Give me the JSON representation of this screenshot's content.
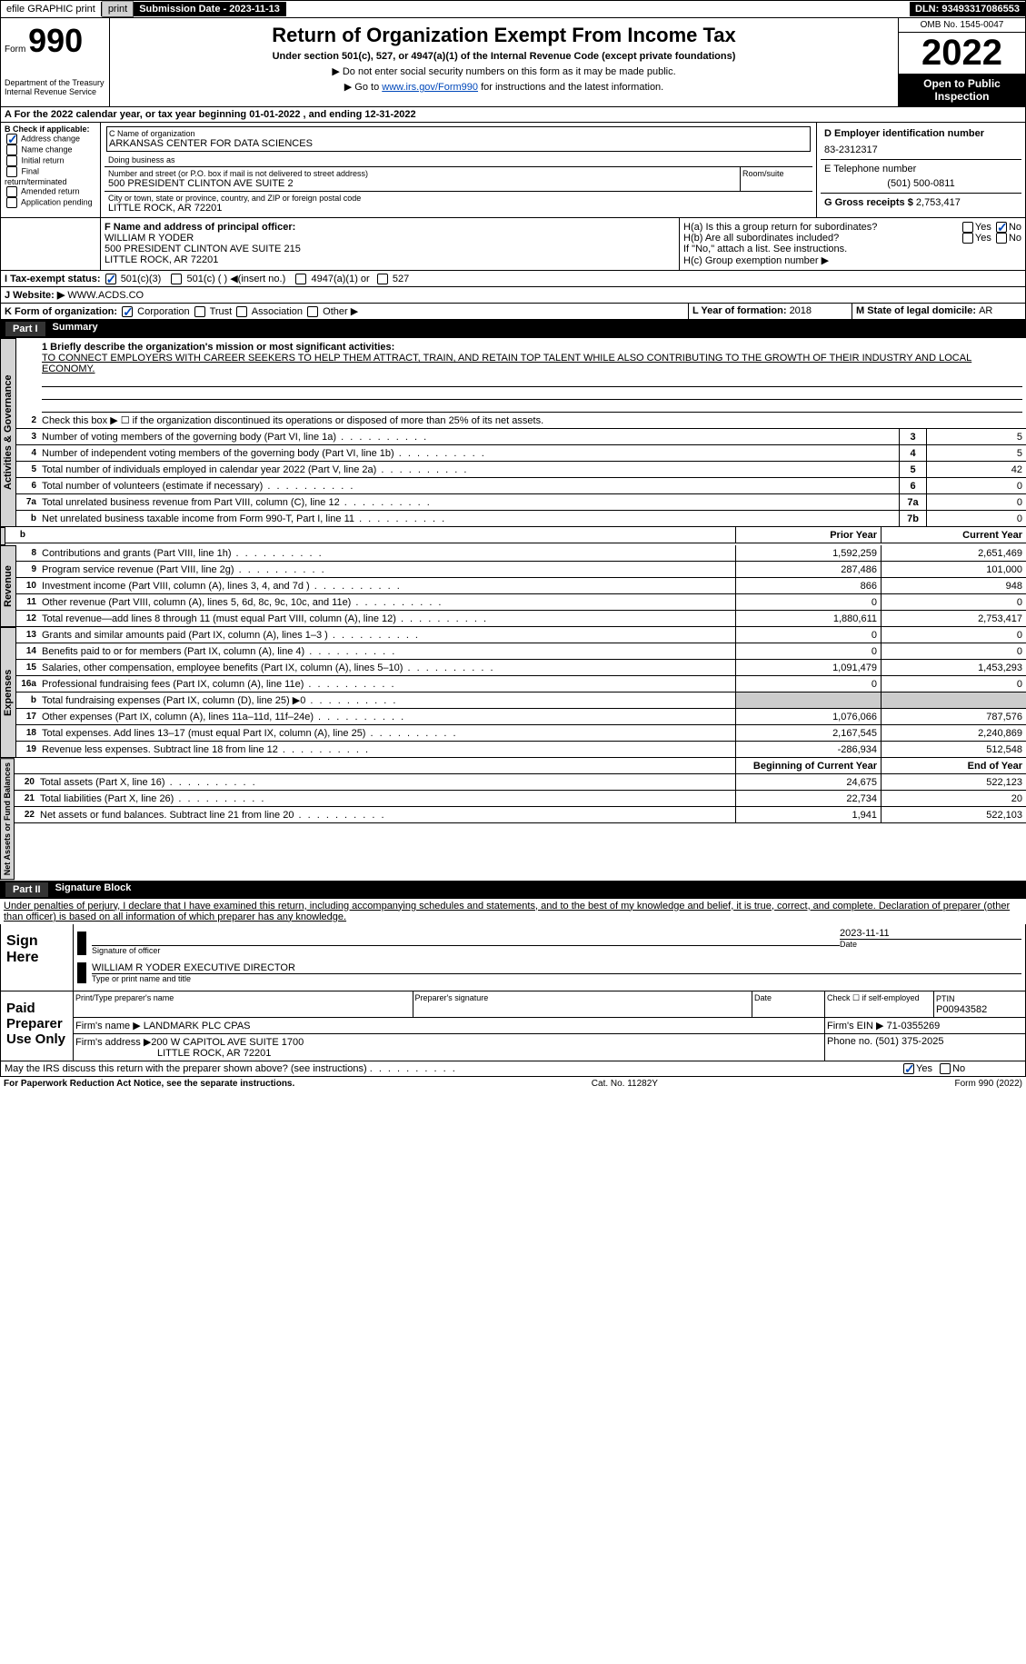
{
  "topbar": {
    "efile": "efile GRAPHIC print",
    "submission_label": "Submission Date - ",
    "submission_date": "2023-11-13",
    "dln_label": "DLN: ",
    "dln": "93493317086553"
  },
  "header": {
    "form_label": "Form",
    "form_num": "990",
    "dept": "Department of the Treasury\nInternal Revenue Service",
    "title": "Return of Organization Exempt From Income Tax",
    "subtitle": "Under section 501(c), 527, or 4947(a)(1) of the Internal Revenue Code (except private foundations)",
    "note1": "▶ Do not enter social security numbers on this form as it may be made public.",
    "note2_pre": "▶ Go to ",
    "note2_link": "www.irs.gov/Form990",
    "note2_post": " for instructions and the latest information.",
    "omb": "OMB No. 1545-0047",
    "year": "2022",
    "inspection": "Open to Public Inspection"
  },
  "period": {
    "line": "A For the 2022 calendar year, or tax year beginning ",
    "begin": "01-01-2022",
    "mid": " , and ending ",
    "end": "12-31-2022"
  },
  "blockB": {
    "label": "B Check if applicable:",
    "items": [
      "Address change",
      "Name change",
      "Initial return",
      "Final return/terminated",
      "Amended return",
      "Application pending"
    ],
    "checked": [
      true,
      false,
      false,
      false,
      false,
      false
    ]
  },
  "blockC": {
    "name_label": "C Name of organization",
    "name": "ARKANSAS CENTER FOR DATA SCIENCES",
    "dba_label": "Doing business as",
    "addr_label": "Number and street (or P.O. box if mail is not delivered to street address)",
    "room_label": "Room/suite",
    "addr": "500 PRESIDENT CLINTON AVE SUITE 2",
    "city_label": "City or town, state or province, country, and ZIP or foreign postal code",
    "city": "LITTLE ROCK, AR  72201"
  },
  "blockD": {
    "label": "D Employer identification number",
    "val": "83-2312317"
  },
  "blockE": {
    "label": "E Telephone number",
    "val": "(501) 500-0811"
  },
  "blockG": {
    "label": "G Gross receipts $ ",
    "val": "2,753,417"
  },
  "blockF": {
    "label": "F Name and address of principal officer:",
    "name": "WILLIAM R YODER",
    "addr": "500 PRESIDENT CLINTON AVE SUITE 215",
    "city": "LITTLE ROCK, AR  72201"
  },
  "blockH": {
    "a_label": "H(a) Is this a group return for subordinates?",
    "b_label": "H(b) Are all subordinates included?",
    "note": "If \"No,\" attach a list. See instructions.",
    "c_label": "H(c) Group exemption number ▶",
    "yes": "Yes",
    "no": "No"
  },
  "blockI": {
    "label": "I   Tax-exempt status:",
    "opts": [
      "501(c)(3)",
      "501(c) (  ) ◀(insert no.)",
      "4947(a)(1) or",
      "527"
    ]
  },
  "blockJ": {
    "label": "J   Website: ▶",
    "val": "WWW.ACDS.CO"
  },
  "blockK": {
    "label": "K Form of organization:",
    "opts": [
      "Corporation",
      "Trust",
      "Association",
      "Other ▶"
    ]
  },
  "blockL": {
    "label": "L Year of formation: ",
    "val": "2018"
  },
  "blockM": {
    "label": "M State of legal domicile: ",
    "val": "AR"
  },
  "part1": {
    "header": "Part I",
    "title": "Summary",
    "l1_label": "1  Briefly describe the organization's mission or most significant activities:",
    "l1_val": "TO CONNECT EMPLOYERS WITH CAREER SEEKERS TO HELP THEM ATTRACT, TRAIN, AND RETAIN TOP TALENT WHILE ALSO CONTRIBUTING TO THE GROWTH OF THEIR INDUSTRY AND LOCAL ECONOMY.",
    "l2": "Check this box ▶ ☐ if the organization discontinued its operations or disposed of more than 25% of its net assets.",
    "lines_gov": [
      {
        "n": "3",
        "t": "Number of voting members of the governing body (Part VI, line 1a)",
        "b": "3",
        "v": "5"
      },
      {
        "n": "4",
        "t": "Number of independent voting members of the governing body (Part VI, line 1b)",
        "b": "4",
        "v": "5"
      },
      {
        "n": "5",
        "t": "Total number of individuals employed in calendar year 2022 (Part V, line 2a)",
        "b": "5",
        "v": "42"
      },
      {
        "n": "6",
        "t": "Total number of volunteers (estimate if necessary)",
        "b": "6",
        "v": "0"
      },
      {
        "n": "7a",
        "t": "Total unrelated business revenue from Part VIII, column (C), line 12",
        "b": "7a",
        "v": "0"
      },
      {
        "n": "b",
        "t": "Net unrelated business taxable income from Form 990-T, Part I, line 11",
        "b": "7b",
        "v": "0"
      }
    ],
    "col_prior": "Prior Year",
    "col_current": "Current Year",
    "lines_rev": [
      {
        "n": "8",
        "t": "Contributions and grants (Part VIII, line 1h)",
        "p": "1,592,259",
        "c": "2,651,469"
      },
      {
        "n": "9",
        "t": "Program service revenue (Part VIII, line 2g)",
        "p": "287,486",
        "c": "101,000"
      },
      {
        "n": "10",
        "t": "Investment income (Part VIII, column (A), lines 3, 4, and 7d )",
        "p": "866",
        "c": "948"
      },
      {
        "n": "11",
        "t": "Other revenue (Part VIII, column (A), lines 5, 6d, 8c, 9c, 10c, and 11e)",
        "p": "0",
        "c": "0"
      },
      {
        "n": "12",
        "t": "Total revenue—add lines 8 through 11 (must equal Part VIII, column (A), line 12)",
        "p": "1,880,611",
        "c": "2,753,417"
      }
    ],
    "lines_exp": [
      {
        "n": "13",
        "t": "Grants and similar amounts paid (Part IX, column (A), lines 1–3 )",
        "p": "0",
        "c": "0"
      },
      {
        "n": "14",
        "t": "Benefits paid to or for members (Part IX, column (A), line 4)",
        "p": "0",
        "c": "0"
      },
      {
        "n": "15",
        "t": "Salaries, other compensation, employee benefits (Part IX, column (A), lines 5–10)",
        "p": "1,091,479",
        "c": "1,453,293"
      },
      {
        "n": "16a",
        "t": "Professional fundraising fees (Part IX, column (A), line 11e)",
        "p": "0",
        "c": "0"
      },
      {
        "n": "b",
        "t": "Total fundraising expenses (Part IX, column (D), line 25) ▶0",
        "p": "",
        "c": "",
        "shade": true
      },
      {
        "n": "17",
        "t": "Other expenses (Part IX, column (A), lines 11a–11d, 11f–24e)",
        "p": "1,076,066",
        "c": "787,576"
      },
      {
        "n": "18",
        "t": "Total expenses. Add lines 13–17 (must equal Part IX, column (A), line 25)",
        "p": "2,167,545",
        "c": "2,240,869"
      },
      {
        "n": "19",
        "t": "Revenue less expenses. Subtract line 18 from line 12",
        "p": "-286,934",
        "c": "512,548"
      }
    ],
    "col_begin": "Beginning of Current Year",
    "col_end": "End of Year",
    "lines_net": [
      {
        "n": "20",
        "t": "Total assets (Part X, line 16)",
        "p": "24,675",
        "c": "522,123"
      },
      {
        "n": "21",
        "t": "Total liabilities (Part X, line 26)",
        "p": "22,734",
        "c": "20"
      },
      {
        "n": "22",
        "t": "Net assets or fund balances. Subtract line 21 from line 20",
        "p": "1,941",
        "c": "522,103"
      }
    ],
    "side_gov": "Activities & Governance",
    "side_rev": "Revenue",
    "side_exp": "Expenses",
    "side_net": "Net Assets or Fund Balances"
  },
  "part2": {
    "header": "Part II",
    "title": "Signature Block",
    "decl": "Under penalties of perjury, I declare that I have examined this return, including accompanying schedules and statements, and to the best of my knowledge and belief, it is true, correct, and complete. Declaration of preparer (other than officer) is based on all information of which preparer has any knowledge.",
    "sign_here": "Sign Here",
    "sig_officer": "Signature of officer",
    "sig_date": "Date",
    "sig_date_val": "2023-11-11",
    "sig_name": "WILLIAM R YODER  EXECUTIVE DIRECTOR",
    "sig_name_label": "Type or print name and title",
    "paid": "Paid Preparer Use Only",
    "prep_name_label": "Print/Type preparer's name",
    "prep_sig_label": "Preparer's signature",
    "date_label": "Date",
    "check_label": "Check ☐ if self-employed",
    "ptin_label": "PTIN",
    "ptin": "P00943582",
    "firm_name_label": "Firm's name    ▶ ",
    "firm_name": "LANDMARK PLC CPAS",
    "firm_ein_label": "Firm's EIN ▶ ",
    "firm_ein": "71-0355269",
    "firm_addr_label": "Firm's address ▶",
    "firm_addr": "200 W CAPITOL AVE SUITE 1700",
    "firm_city": "LITTLE ROCK, AR  72201",
    "phone_label": "Phone no. ",
    "phone": "(501) 375-2025",
    "discuss": "May the IRS discuss this return with the preparer shown above? (see instructions)",
    "yes": "Yes",
    "no": "No"
  },
  "footer": {
    "left": "For Paperwork Reduction Act Notice, see the separate instructions.",
    "mid": "Cat. No. 11282Y",
    "right": "Form 990 (2022)"
  }
}
